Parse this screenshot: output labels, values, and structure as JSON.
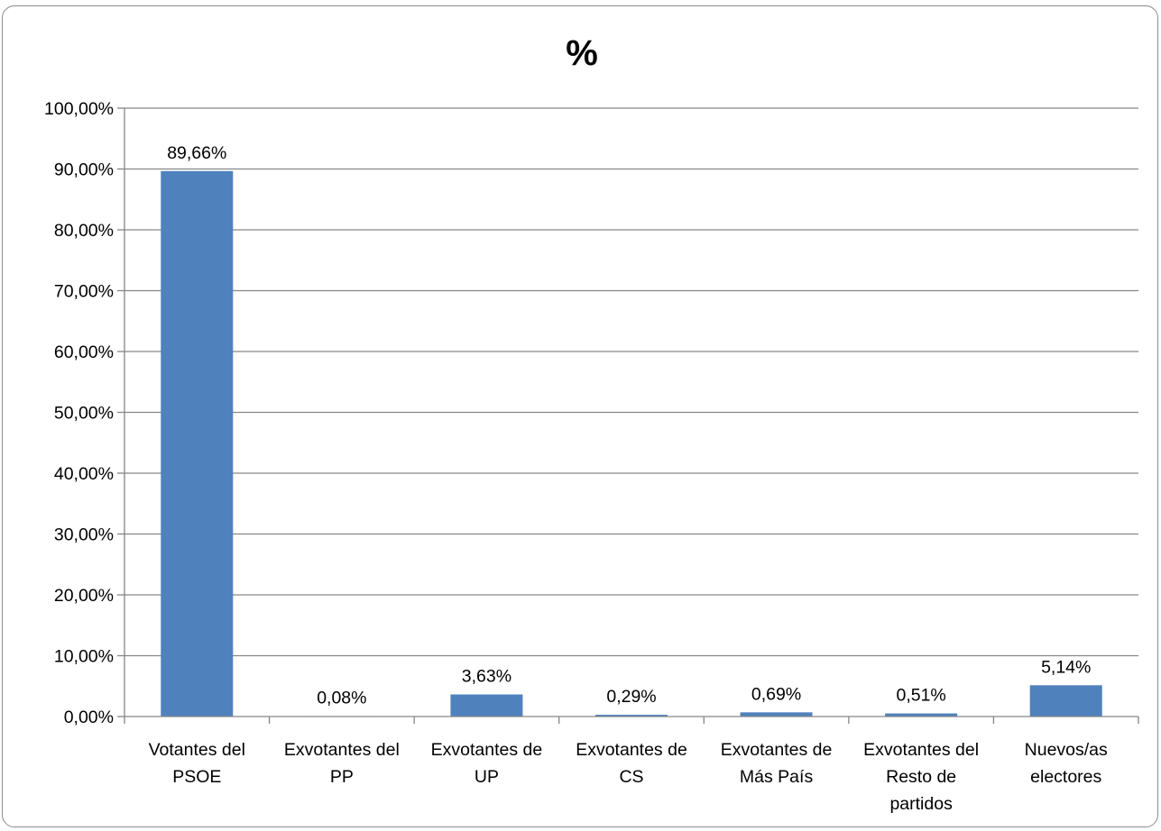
{
  "chart_data": {
    "type": "bar",
    "title": "%",
    "categories": [
      [
        "Votantes del",
        "PSOE"
      ],
      [
        "Exvotantes del",
        "PP"
      ],
      [
        "Exvotantes de",
        "UP"
      ],
      [
        "Exvotantes de",
        "CS"
      ],
      [
        "Exvotantes de",
        "Más País"
      ],
      [
        "Exvotantes del",
        "Resto de",
        "partidos"
      ],
      [
        "Nuevos/as",
        "electores"
      ]
    ],
    "series": [
      {
        "values": [
          89.66,
          0.08,
          3.63,
          0.29,
          0.69,
          0.51,
          5.14
        ],
        "data_labels": [
          "89,66%",
          "0,08%",
          "3,63%",
          "0,29%",
          "0,69%",
          "0,51%",
          "5,14%"
        ],
        "color": "#4f81bd"
      }
    ],
    "xlabel": "",
    "ylabel": "",
    "ylim": [
      0,
      100
    ],
    "yticks": [
      0,
      10,
      20,
      30,
      40,
      50,
      60,
      70,
      80,
      90,
      100
    ],
    "ytick_labels": [
      "0,00%",
      "10,00%",
      "20,00%",
      "30,00%",
      "40,00%",
      "50,00%",
      "60,00%",
      "70,00%",
      "80,00%",
      "90,00%",
      "100,00%"
    ],
    "grid": true,
    "legend": "none",
    "gridline_color": "#868686",
    "axis_color": "#868686"
  }
}
